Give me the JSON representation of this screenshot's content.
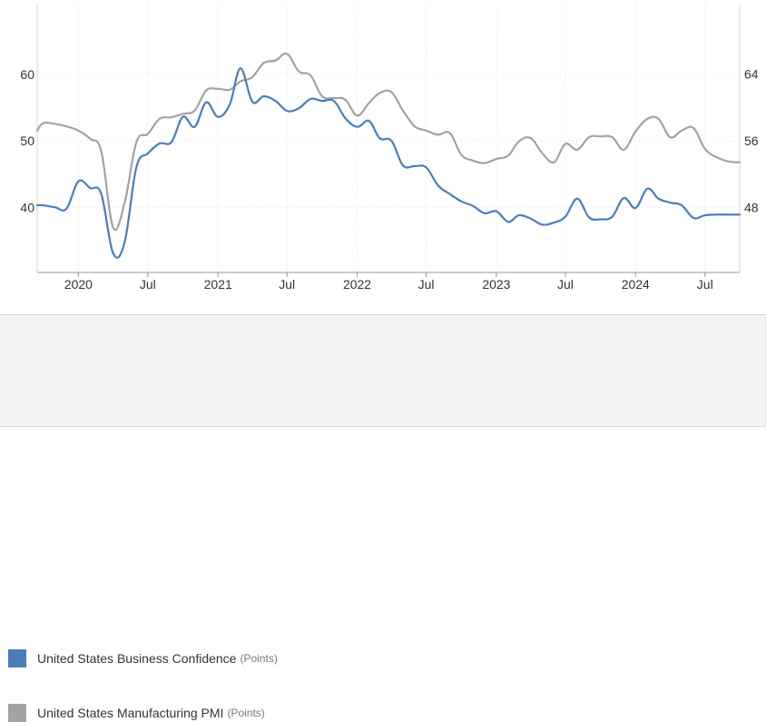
{
  "chart_data": {
    "type": "line",
    "x_axis": {
      "ticks": [
        {
          "label": "2020",
          "date": "2020-01-01"
        },
        {
          "label": "Jul",
          "date": "2020-07-01"
        },
        {
          "label": "2021",
          "date": "2021-01-01"
        },
        {
          "label": "Jul",
          "date": "2021-07-01"
        },
        {
          "label": "2022",
          "date": "2022-01-01"
        },
        {
          "label": "Jul",
          "date": "2022-07-01"
        },
        {
          "label": "2023",
          "date": "2023-01-01"
        },
        {
          "label": "Jul",
          "date": "2023-07-01"
        },
        {
          "label": "2024",
          "date": "2024-01-01"
        },
        {
          "label": "Jul",
          "date": "2024-07-01"
        }
      ],
      "range": [
        "2019-09-15",
        "2024-09-30"
      ]
    },
    "y_axis_left": {
      "ticks": [
        40,
        50,
        60
      ],
      "range": [
        30.2,
        70.5
      ]
    },
    "y_axis_right": {
      "ticks": [
        48,
        56,
        64
      ],
      "range": [
        40.2,
        72.3
      ]
    },
    "grid": true,
    "legend_position": "bottom",
    "series": [
      {
        "name": "United States Business Confidence",
        "unit": "(Points)",
        "color": "#4a7ebb",
        "axis": "left",
        "x": [
          "2019-09-15",
          "2019-10-01",
          "2019-11-01",
          "2019-12-01",
          "2020-01-01",
          "2020-02-01",
          "2020-03-01",
          "2020-04-01",
          "2020-05-01",
          "2020-06-01",
          "2020-07-01",
          "2020-08-01",
          "2020-09-01",
          "2020-10-01",
          "2020-11-01",
          "2020-12-01",
          "2021-01-01",
          "2021-02-01",
          "2021-03-01",
          "2021-04-01",
          "2021-05-01",
          "2021-06-01",
          "2021-07-01",
          "2021-08-01",
          "2021-09-01",
          "2021-10-01",
          "2021-11-01",
          "2021-12-01",
          "2022-01-01",
          "2022-02-01",
          "2022-03-01",
          "2022-04-01",
          "2022-05-01",
          "2022-06-01",
          "2022-07-01",
          "2022-08-01",
          "2022-09-01",
          "2022-10-01",
          "2022-11-01",
          "2022-12-01",
          "2023-01-01",
          "2023-02-01",
          "2023-03-01",
          "2023-04-01",
          "2023-05-01",
          "2023-06-01",
          "2023-07-01",
          "2023-08-01",
          "2023-09-01",
          "2023-10-01",
          "2023-11-01",
          "2023-12-01",
          "2024-01-01",
          "2024-02-01",
          "2024-03-01",
          "2024-04-01",
          "2024-05-01",
          "2024-06-01",
          "2024-07-01",
          "2024-08-01",
          "2024-09-01",
          "2024-09-30"
        ],
        "values": [
          40.3,
          40.3,
          40.0,
          39.8,
          43.9,
          42.9,
          42.0,
          33.1,
          34.7,
          46.0,
          48.1,
          49.6,
          49.8,
          53.6,
          52.1,
          55.8,
          53.6,
          55.5,
          60.9,
          55.9,
          56.7,
          56.0,
          54.5,
          54.9,
          56.3,
          56.0,
          56.0,
          53.4,
          52.1,
          53.0,
          50.4,
          50.0,
          46.3,
          46.2,
          46.0,
          43.3,
          42.0,
          40.9,
          40.2,
          39.1,
          39.4,
          37.8,
          38.8,
          38.3,
          37.4,
          37.7,
          38.6,
          41.3,
          38.5,
          38.2,
          38.6,
          41.4,
          39.9,
          42.8,
          41.3,
          40.7,
          40.3,
          38.4,
          38.8,
          38.9,
          38.9,
          38.9
        ]
      },
      {
        "name": "United States Manufacturing PMI",
        "unit": "(Points)",
        "color": "#a3a3a3",
        "axis": "right",
        "x": [
          "2019-09-15",
          "2019-10-01",
          "2019-11-01",
          "2019-12-01",
          "2020-01-01",
          "2020-02-01",
          "2020-03-01",
          "2020-04-01",
          "2020-05-01",
          "2020-06-01",
          "2020-07-01",
          "2020-08-01",
          "2020-09-01",
          "2020-10-01",
          "2020-11-01",
          "2020-12-01",
          "2021-01-01",
          "2021-02-01",
          "2021-03-01",
          "2021-04-01",
          "2021-05-01",
          "2021-06-01",
          "2021-07-01",
          "2021-08-01",
          "2021-09-01",
          "2021-10-01",
          "2021-11-01",
          "2021-12-01",
          "2022-01-01",
          "2022-02-01",
          "2022-03-01",
          "2022-04-01",
          "2022-05-01",
          "2022-06-01",
          "2022-07-01",
          "2022-08-01",
          "2022-09-01",
          "2022-10-01",
          "2022-11-01",
          "2022-12-01",
          "2023-01-01",
          "2023-02-01",
          "2023-03-01",
          "2023-04-01",
          "2023-05-01",
          "2023-06-01",
          "2023-07-01",
          "2023-08-01",
          "2023-09-01",
          "2023-10-01",
          "2023-11-01",
          "2023-12-01",
          "2024-01-01",
          "2024-02-01",
          "2024-03-01",
          "2024-04-01",
          "2024-05-01",
          "2024-06-01",
          "2024-07-01",
          "2024-08-01",
          "2024-09-01",
          "2024-09-30"
        ],
        "values": [
          57.2,
          58.1,
          58.0,
          57.7,
          57.2,
          56.2,
          54.7,
          45.6,
          48.5,
          55.8,
          56.8,
          58.6,
          58.8,
          59.2,
          59.6,
          62.0,
          62.2,
          62.1,
          63.1,
          63.6,
          65.3,
          65.6,
          66.4,
          64.3,
          63.8,
          61.3,
          61.1,
          60.9,
          59.0,
          60.5,
          61.7,
          61.8,
          59.6,
          57.7,
          57.2,
          56.7,
          56.9,
          54.3,
          53.6,
          53.3,
          53.8,
          54.2,
          55.9,
          56.3,
          54.5,
          53.4,
          55.6,
          54.9,
          56.4,
          56.5,
          56.4,
          54.9,
          57.1,
          58.6,
          58.6,
          56.4,
          57.2,
          57.5,
          55.0,
          54.0,
          53.5,
          53.4
        ]
      }
    ]
  }
}
